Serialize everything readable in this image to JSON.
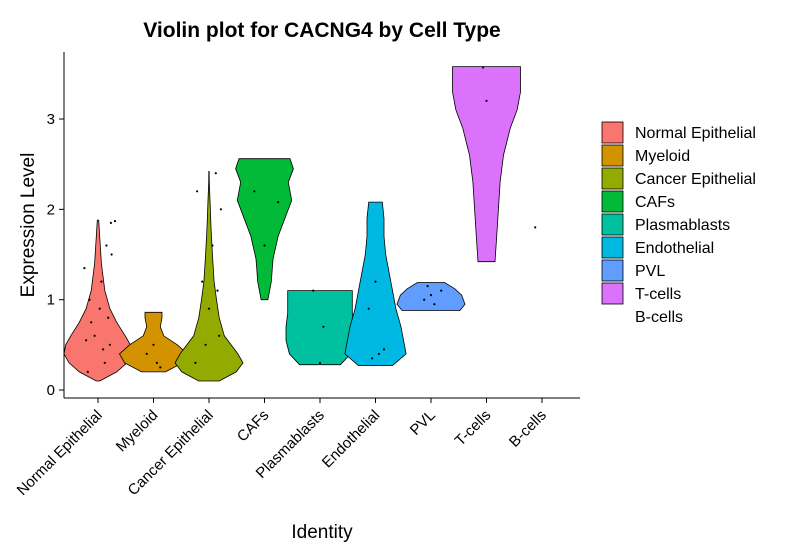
{
  "chart_data": {
    "type": "violin",
    "title": "Violin plot for CACNG4 by Cell Type",
    "xlabel": "Identity",
    "ylabel": "Expression Level",
    "ylim": [
      0,
      3.6
    ],
    "yticks": [
      0,
      1,
      2,
      3
    ],
    "grid": false,
    "legend_position": "right",
    "categories": [
      "Normal Epithelial",
      "Myeloid",
      "Cancer Epithelial",
      "CAFs",
      "Plasmablasts",
      "Endothelial",
      "PVL",
      "T-cells",
      "B-cells"
    ],
    "series": [
      {
        "name": "Normal Epithelial",
        "color": "#F8766D",
        "min": 0.1,
        "max": 1.88,
        "profile": [
          [
            0.1,
            0.05
          ],
          [
            0.2,
            0.55
          ],
          [
            0.3,
            0.85
          ],
          [
            0.4,
            1.0
          ],
          [
            0.5,
            0.95
          ],
          [
            0.6,
            0.8
          ],
          [
            0.75,
            0.55
          ],
          [
            0.9,
            0.35
          ],
          [
            1.1,
            0.2
          ],
          [
            1.4,
            0.1
          ],
          [
            1.7,
            0.05
          ],
          [
            1.88,
            0.02
          ]
        ],
        "points": [
          [
            -0.3,
            0.2
          ],
          [
            0.2,
            0.3
          ],
          [
            0.35,
            0.5
          ],
          [
            -0.25,
            1.0
          ],
          [
            0.1,
            1.2
          ],
          [
            -0.4,
            1.35
          ],
          [
            0.4,
            1.5
          ],
          [
            0.25,
            1.6
          ],
          [
            0.38,
            1.85
          ],
          [
            0.5,
            1.87
          ],
          [
            -0.1,
            0.6
          ],
          [
            0.15,
            0.45
          ],
          [
            -0.2,
            0.75
          ],
          [
            0.05,
            0.9
          ],
          [
            0.3,
            0.8
          ],
          [
            -0.35,
            0.55
          ]
        ]
      },
      {
        "name": "Myeloid",
        "color": "#D39200",
        "min": 0.2,
        "max": 0.86,
        "profile": [
          [
            0.2,
            0.35
          ],
          [
            0.3,
            0.85
          ],
          [
            0.4,
            1.0
          ],
          [
            0.5,
            0.7
          ],
          [
            0.6,
            0.3
          ],
          [
            0.7,
            0.2
          ],
          [
            0.8,
            0.25
          ],
          [
            0.86,
            0.25
          ]
        ],
        "points": [
          [
            0.0,
            0.5
          ],
          [
            0.1,
            0.3
          ],
          [
            -0.2,
            0.4
          ],
          [
            0.2,
            0.25
          ]
        ]
      },
      {
        "name": "Cancer Epithelial",
        "color": "#93AA00",
        "min": 0.1,
        "max": 2.42,
        "profile": [
          [
            0.1,
            0.3
          ],
          [
            0.2,
            0.8
          ],
          [
            0.3,
            1.0
          ],
          [
            0.4,
            0.85
          ],
          [
            0.5,
            0.65
          ],
          [
            0.6,
            0.45
          ],
          [
            0.8,
            0.3
          ],
          [
            1.0,
            0.22
          ],
          [
            1.2,
            0.15
          ],
          [
            1.5,
            0.1
          ],
          [
            1.8,
            0.06
          ],
          [
            2.1,
            0.03
          ],
          [
            2.3,
            0.01
          ],
          [
            2.42,
            0.005
          ]
        ],
        "points": [
          [
            -0.4,
            0.3
          ],
          [
            0.3,
            0.6
          ],
          [
            -0.2,
            1.2
          ],
          [
            0.1,
            1.6
          ],
          [
            0.35,
            2.0
          ],
          [
            -0.35,
            2.2
          ],
          [
            0.2,
            2.4
          ],
          [
            0.0,
            0.9
          ],
          [
            -0.1,
            0.5
          ],
          [
            0.25,
            1.1
          ]
        ]
      },
      {
        "name": "CAFs",
        "color": "#00BA38",
        "min": 1.0,
        "max": 2.56,
        "profile": [
          [
            1.0,
            0.1
          ],
          [
            1.2,
            0.2
          ],
          [
            1.45,
            0.25
          ],
          [
            1.7,
            0.4
          ],
          [
            1.9,
            0.6
          ],
          [
            2.1,
            0.8
          ],
          [
            2.3,
            0.7
          ],
          [
            2.45,
            0.85
          ],
          [
            2.56,
            0.75
          ]
        ],
        "points": [
          [
            -0.3,
            2.2
          ],
          [
            0.4,
            2.08
          ],
          [
            0.0,
            1.6
          ]
        ]
      },
      {
        "name": "Plasmablasts",
        "color": "#00C19F",
        "min": 0.28,
        "max": 1.1,
        "profile": [
          [
            0.28,
            0.6
          ],
          [
            0.4,
            0.9
          ],
          [
            0.55,
            1.0
          ],
          [
            0.7,
            1.0
          ],
          [
            0.85,
            0.95
          ],
          [
            1.0,
            0.95
          ],
          [
            1.1,
            0.95
          ]
        ],
        "points": [
          [
            0.1,
            0.7
          ],
          [
            -0.2,
            1.1
          ],
          [
            0.0,
            0.3
          ]
        ]
      },
      {
        "name": "Endothelial",
        "color": "#00B9E3",
        "min": 0.27,
        "max": 2.08,
        "profile": [
          [
            0.27,
            0.5
          ],
          [
            0.4,
            0.9
          ],
          [
            0.5,
            0.85
          ],
          [
            0.7,
            0.75
          ],
          [
            0.9,
            0.6
          ],
          [
            1.1,
            0.5
          ],
          [
            1.3,
            0.4
          ],
          [
            1.5,
            0.3
          ],
          [
            1.7,
            0.25
          ],
          [
            1.9,
            0.25
          ],
          [
            2.08,
            0.2
          ]
        ],
        "points": [
          [
            0.1,
            0.4
          ],
          [
            -0.1,
            0.35
          ],
          [
            0.25,
            0.45
          ],
          [
            0.0,
            1.2
          ],
          [
            -0.2,
            0.9
          ]
        ]
      },
      {
        "name": "PVL",
        "color": "#619CFF",
        "min": 0.88,
        "max": 1.19,
        "profile": [
          [
            0.88,
            0.85
          ],
          [
            0.95,
            1.0
          ],
          [
            1.05,
            0.9
          ],
          [
            1.12,
            0.7
          ],
          [
            1.19,
            0.4
          ]
        ],
        "points": [
          [
            -0.2,
            1.0
          ],
          [
            0.1,
            0.95
          ],
          [
            0.3,
            1.1
          ],
          [
            0.0,
            1.05
          ],
          [
            -0.1,
            1.15
          ]
        ]
      },
      {
        "name": "T-cells",
        "color": "#DB72FB",
        "min": 1.42,
        "max": 3.58,
        "profile": [
          [
            1.42,
            0.25
          ],
          [
            1.7,
            0.3
          ],
          [
            2.0,
            0.35
          ],
          [
            2.3,
            0.4
          ],
          [
            2.6,
            0.5
          ],
          [
            2.9,
            0.7
          ],
          [
            3.1,
            0.9
          ],
          [
            3.3,
            1.0
          ],
          [
            3.45,
            1.0
          ],
          [
            3.58,
            1.0
          ]
        ],
        "points": [
          [
            0.0,
            3.2
          ],
          [
            -0.1,
            3.57
          ]
        ]
      },
      {
        "name": "B-cells",
        "color": "",
        "min": 1.8,
        "max": 1.8,
        "profile": [],
        "points": [
          [
            -0.2,
            1.8
          ]
        ]
      }
    ]
  }
}
